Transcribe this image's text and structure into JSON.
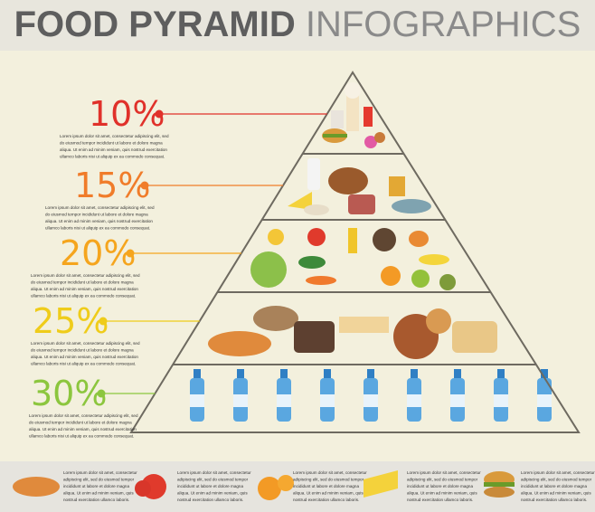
{
  "header": {
    "title_bold": "FOOD PYRAMID",
    "title_light": "INFOGRAPHICS"
  },
  "levels": [
    {
      "percent": "10%",
      "text": [
        "Lorem ipsum dolor sit amet, consectetur adipiscing elit, sed",
        "do eiusmod tempor incididunt ut labore et dolore magna",
        "aliqua. Ut enim ad minim veniam, quis nostrud exercitation",
        "ullamco laboris nisi ut aliquip ex ea commodo consequat."
      ]
    },
    {
      "percent": "15%",
      "text": [
        "Lorem ipsum dolor sit amet, consectetur adipiscing elit, sed",
        "do eiusmod tempor incididunt ut labore et dolore magna",
        "aliqua. Ut enim ad minim veniam, quis nostrud exercitation",
        "ullamco laboris nisi ut aliquip ex ea commodo consequat."
      ]
    },
    {
      "percent": "20%",
      "text": [
        "Lorem ipsum dolor sit amet, consectetur adipiscing elit, sed",
        "do eiusmod tempor incididunt ut labore et dolore magna",
        "aliqua. Ut enim ad minim veniam, quis nostrud exercitation",
        "ullamco laboris nisi ut aliquip ex ea commodo consequat."
      ]
    },
    {
      "percent": "25%",
      "text": [
        "Lorem ipsum dolor sit amet, consectetur adipiscing elit, sed",
        "do eiusmod tempor incididunt ut labore et dolore magna",
        "aliqua. Ut enim ad minim veniam, quis nostrud exercitation",
        "ullamco laboris nisi ut aliquip ex ea commodo consequat."
      ]
    },
    {
      "percent": "30%",
      "text": [
        "Lorem ipsum dolor sit amet, consectetur adipiscing elit, sed",
        "do eiusmod tempor incididunt ut labore et dolore magna",
        "aliqua. Ut enim ad minim veniam, quis nostrud exercitation",
        "ullamco laboris nisi ut aliquip ex ea commodo consequat."
      ]
    }
  ],
  "footer_items": [
    {
      "text": [
        "Lorem ipsum dolor sit amet, consectetur",
        "adipiscing elit, sed do eiusmod tempor",
        "incididunt ut labore et dolore magna",
        "aliqua. Ut enim ad minim veniam, quis",
        "nostrud exercitation ullamco laboris."
      ]
    },
    {
      "text": [
        "Lorem ipsum dolor sit amet, consectetur",
        "adipiscing elit, sed do eiusmod tempor",
        "incididunt ut labore et dolore magna",
        "aliqua. Ut enim ad minim veniam, quis",
        "nostrud exercitation ullamco laboris."
      ]
    },
    {
      "text": [
        "Lorem ipsum dolor sit amet, consectetur",
        "adipiscing elit, sed do eiusmod tempor",
        "incididunt ut labore et dolore magna",
        "aliqua. Ut enim ad minim veniam, quis",
        "nostrud exercitation ullamco laboris."
      ]
    },
    {
      "text": [
        "Lorem ipsum dolor sit amet, consectetur",
        "adipiscing elit, sed do eiusmod tempor",
        "incididunt ut labore et dolore magna",
        "aliqua. Ut enim ad minim veniam, quis",
        "nostrud exercitation ullamco laboris."
      ]
    },
    {
      "text": [
        "Lorem ipsum dolor sit amet, consectetur",
        "adipiscing elit, sed do eiusmod tempor",
        "incididunt ut labore et dolore magna",
        "aliqua. Ut enim ad minim veniam, quis",
        "nostrud exercitation ullamco laboris."
      ]
    }
  ]
}
